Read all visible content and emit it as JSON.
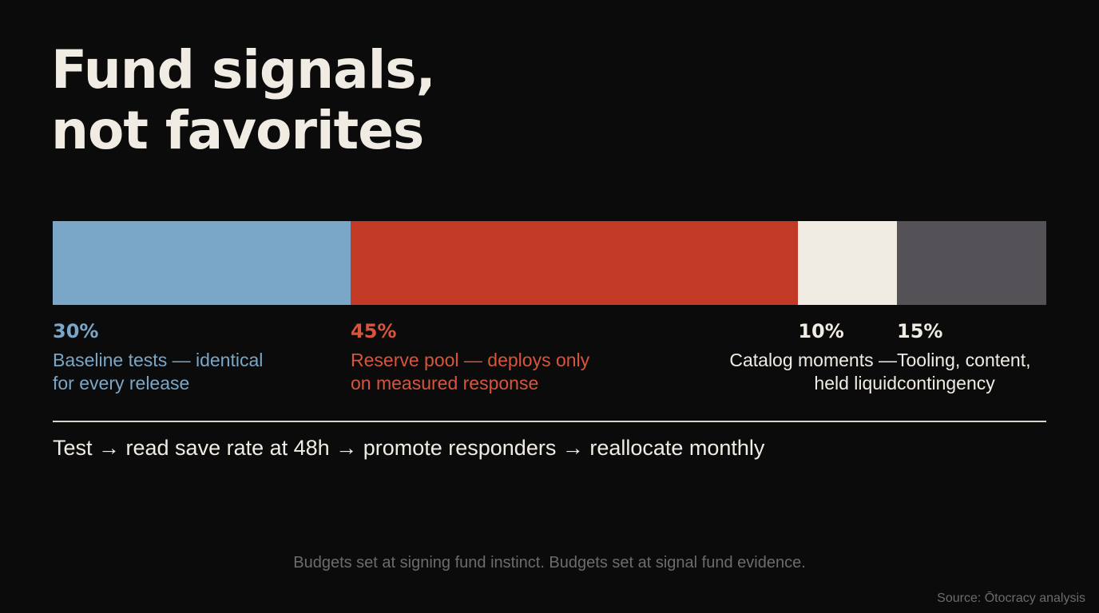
{
  "title": {
    "line1": "Fund signals,",
    "line2": "not favorites"
  },
  "chart_data": {
    "type": "bar",
    "stacked": true,
    "orientation": "horizontal",
    "unit": "%",
    "segments": [
      {
        "value": 30,
        "pct_label": "30%",
        "label_line1": "Baseline tests — identical",
        "label_line2": "for every release",
        "color": "#7aa7c7",
        "text_color": "#7aa7c7",
        "align": "left"
      },
      {
        "value": 45,
        "pct_label": "45%",
        "label_line1": "Reserve pool — deploys only",
        "label_line2": "on measured response",
        "color": "#c23a25",
        "text_color": "#d9543c",
        "align": "left"
      },
      {
        "value": 10,
        "pct_label": "10%",
        "label_line1": "Catalog moments —",
        "label_line2": "held liquid",
        "color": "#f0ece3",
        "text_color": "#f0ece3",
        "align": "right"
      },
      {
        "value": 15,
        "pct_label": "15%",
        "label_line1": "Tooling, content,",
        "label_line2": "contingency",
        "color": "#545257",
        "text_color": "#f0ece3",
        "align": "left"
      }
    ]
  },
  "flow_text": "Test → read save rate at 48h → promote responders → reallocate monthly",
  "footnote": "Budgets set at signing fund instinct. Budgets set at signal fund evidence.",
  "source": "Source: Ōtocracy analysis"
}
